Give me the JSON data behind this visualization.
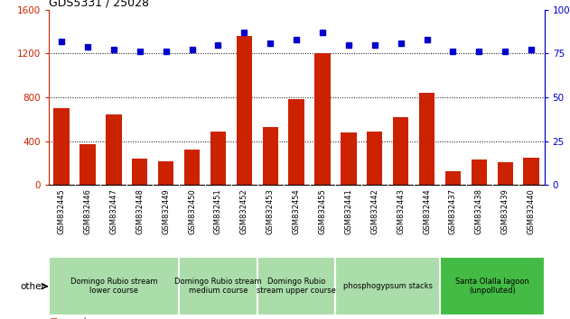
{
  "title": "GDS5331 / 25028",
  "samples": [
    "GSM832445",
    "GSM832446",
    "GSM832447",
    "GSM832448",
    "GSM832449",
    "GSM832450",
    "GSM832451",
    "GSM832452",
    "GSM832453",
    "GSM832454",
    "GSM832455",
    "GSM832441",
    "GSM832442",
    "GSM832443",
    "GSM832444",
    "GSM832437",
    "GSM832438",
    "GSM832439",
    "GSM832440"
  ],
  "counts": [
    700,
    370,
    640,
    240,
    220,
    320,
    490,
    1360,
    530,
    780,
    1200,
    480,
    490,
    620,
    840,
    130,
    230,
    210,
    250
  ],
  "percentile_ranks": [
    82,
    79,
    77,
    76,
    76,
    77,
    80,
    87,
    81,
    83,
    87,
    80,
    80,
    81,
    83,
    76,
    76,
    76,
    77
  ],
  "groups": [
    {
      "label": "Domingo Rubio stream\nlower course",
      "start": 0,
      "end": 5,
      "color": "#aaddaa"
    },
    {
      "label": "Domingo Rubio stream\nmedium course",
      "start": 5,
      "end": 8,
      "color": "#aaddaa"
    },
    {
      "label": "Domingo Rubio\nstream upper course",
      "start": 8,
      "end": 11,
      "color": "#aaddaa"
    },
    {
      "label": "phosphogypsum stacks",
      "start": 11,
      "end": 15,
      "color": "#aaddaa"
    },
    {
      "label": "Santa Olalla lagoon\n(unpolluted)",
      "start": 15,
      "end": 19,
      "color": "#44bb44"
    }
  ],
  "bar_color": "#cc2200",
  "dot_color": "#0000cc",
  "ylim_left": [
    0,
    1600
  ],
  "ylim_right": [
    0,
    100
  ],
  "yticks_left": [
    0,
    400,
    800,
    1200,
    1600
  ],
  "yticks_right": [
    0,
    25,
    50,
    75,
    100
  ],
  "tick_label_color_left": "#cc2200",
  "tick_label_color_right": "#0000cc",
  "bg_plot": "#ffffff",
  "bg_sample": "#cccccc",
  "grid_ticks": [
    400,
    800,
    1200
  ]
}
